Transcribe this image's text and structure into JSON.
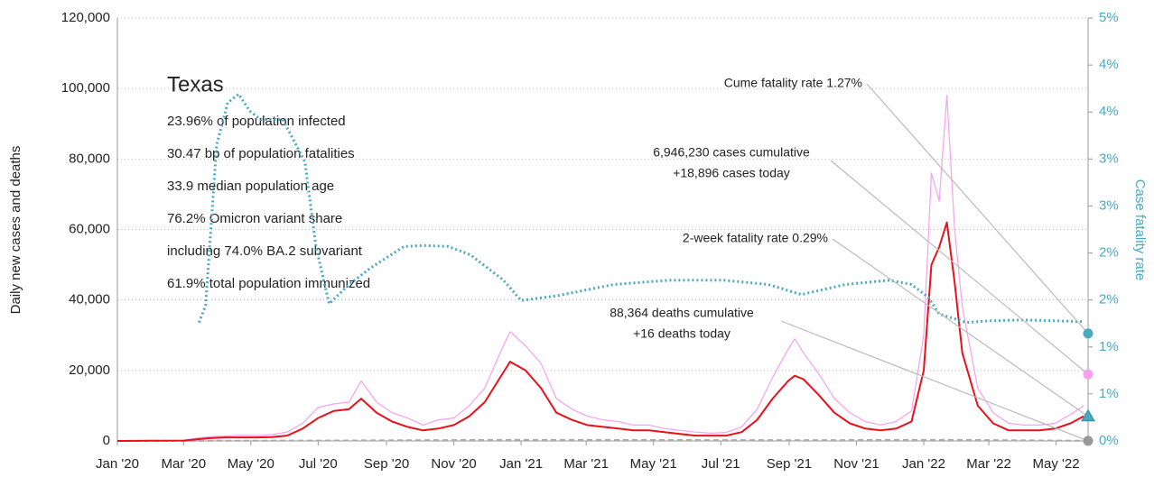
{
  "chart_data": {
    "type": "line",
    "y_label": "Daily new cases and deaths",
    "y2_label": "Case fatality rate",
    "info": {
      "title": "Texas",
      "lines": [
        "23.96% of population infected",
        "30.47 bp of population fatalities",
        "33.9 median population age",
        "76.2% Omicron variant share",
        "including 74.0% BA.2 subvariant",
        "61.9% total population immunized"
      ]
    },
    "xlim": [
      0,
      880
    ],
    "xticks": [
      {
        "value": 0,
        "label": "Jan '20"
      },
      {
        "value": 60,
        "label": "Mar '20"
      },
      {
        "value": 121,
        "label": "May '20"
      },
      {
        "value": 182,
        "label": "Jul '20"
      },
      {
        "value": 244,
        "label": "Sep '20"
      },
      {
        "value": 305,
        "label": "Nov '20"
      },
      {
        "value": 366,
        "label": "Jan '21"
      },
      {
        "value": 425,
        "label": "Mar '21"
      },
      {
        "value": 486,
        "label": "May '21"
      },
      {
        "value": 547,
        "label": "Jul '21"
      },
      {
        "value": 609,
        "label": "Sep '21"
      },
      {
        "value": 670,
        "label": "Nov '21"
      },
      {
        "value": 731,
        "label": "Jan '22"
      },
      {
        "value": 790,
        "label": "Mar '22"
      },
      {
        "value": 851,
        "label": "May '22"
      }
    ],
    "ylim": [
      0,
      120000
    ],
    "yticks": [
      0,
      {
        "value": 20000,
        "label": "20,000"
      },
      {
        "value": 40000,
        "label": "40,000"
      },
      {
        "value": 60000,
        "label": "60,000"
      },
      {
        "value": 80000,
        "label": "80,000"
      },
      {
        "value": 100000,
        "label": "100,000"
      },
      {
        "value": 120000,
        "label": "120,000"
      }
    ],
    "y2lim": [
      0,
      5
    ],
    "y2ticks": [
      {
        "value": 0,
        "label": "0%"
      },
      {
        "value": 0.556,
        "label": "1%"
      },
      {
        "value": 1.111,
        "label": "1%"
      },
      {
        "value": 1.667,
        "label": "2%"
      },
      {
        "value": 2.222,
        "label": "2%"
      },
      {
        "value": 2.778,
        "label": "3%"
      },
      {
        "value": 3.333,
        "label": "3%"
      },
      {
        "value": 3.889,
        "label": "4%"
      },
      {
        "value": 4.444,
        "label": "4%"
      },
      {
        "value": 5,
        "label": "5%"
      }
    ],
    "grid": true,
    "series": [
      {
        "color": "#f7a0f0",
        "style": "solid",
        "width": 1.2,
        "x": [
          0,
          30,
          60,
          74,
          84,
          98,
          112,
          126,
          140,
          154,
          168,
          182,
          196,
          210,
          221,
          235,
          249,
          263,
          277,
          291,
          305,
          319,
          333,
          347,
          356,
          370,
          384,
          398,
          412,
          426,
          440,
          454,
          468,
          482,
          496,
          510,
          524,
          538,
          552,
          566,
          580,
          594,
          608,
          614,
          622,
          636,
          650,
          664,
          678,
          692,
          706,
          720,
          731,
          738,
          745,
          752,
          759,
          766,
          780,
          794,
          808,
          822,
          836,
          850,
          864,
          876
        ],
        "values": [
          0,
          80,
          150,
          900,
          1200,
          1400,
          1600,
          1500,
          1800,
          2500,
          5000,
          9500,
          10500,
          11000,
          17000,
          11000,
          8000,
          6500,
          4500,
          6000,
          6500,
          10000,
          15000,
          25000,
          31000,
          27000,
          22000,
          12000,
          9000,
          7000,
          6000,
          5500,
          4500,
          4500,
          3500,
          3000,
          2500,
          2200,
          2400,
          4000,
          9000,
          18000,
          26000,
          29000,
          25000,
          19000,
          12000,
          8000,
          5500,
          4500,
          5500,
          8500,
          30000,
          76000,
          68000,
          98000,
          60000,
          38000,
          15000,
          8000,
          5000,
          4500,
          4500,
          5000,
          7500,
          10000
        ]
      },
      {
        "color": "#aaaaaa",
        "style": "dash",
        "width": 2,
        "x": [
          0,
          182,
          366,
          614,
          750,
          876
        ],
        "values": [
          0,
          100,
          300,
          200,
          300,
          50
        ]
      },
      {
        "color": "#e8101a",
        "style": "solid",
        "width": 2,
        "x": [
          0,
          30,
          60,
          74,
          84,
          98,
          112,
          126,
          140,
          154,
          168,
          182,
          196,
          210,
          221,
          235,
          249,
          263,
          277,
          291,
          305,
          319,
          333,
          347,
          356,
          370,
          384,
          398,
          412,
          426,
          440,
          454,
          468,
          482,
          496,
          510,
          524,
          538,
          552,
          566,
          580,
          594,
          608,
          614,
          622,
          636,
          650,
          664,
          678,
          692,
          706,
          720,
          731,
          738,
          745,
          752,
          759,
          766,
          780,
          794,
          808,
          822,
          836,
          850,
          864,
          876
        ],
        "values": [
          0,
          50,
          100,
          500,
          800,
          1000,
          1000,
          1000,
          1100,
          1500,
          3500,
          6500,
          8500,
          9000,
          12000,
          8000,
          5500,
          4000,
          3000,
          3500,
          4500,
          7000,
          11000,
          18000,
          22500,
          20000,
          15000,
          8000,
          6000,
          4500,
          4000,
          3500,
          3000,
          3000,
          2500,
          2000,
          1500,
          1500,
          1500,
          2500,
          6000,
          12000,
          17000,
          18500,
          17500,
          13000,
          8000,
          5000,
          3500,
          3000,
          3500,
          5500,
          20000,
          50000,
          55000,
          62000,
          45000,
          25000,
          10000,
          5000,
          3000,
          3000,
          3000,
          3500,
          5000,
          7000
        ]
      },
      {
        "color": "#4aa9c0",
        "style": "dot",
        "width": 3,
        "axis": "y2",
        "x": [
          74,
          80,
          90,
          100,
          110,
          120,
          130,
          150,
          170,
          180,
          192,
          210,
          230,
          260,
          278,
          300,
          320,
          350,
          366,
          400,
          450,
          500,
          550,
          590,
          620,
          660,
          700,
          720,
          735,
          745,
          770,
          790,
          820,
          850,
          876
        ],
        "values": [
          1.4,
          1.6,
          3.5,
          4.0,
          4.1,
          3.9,
          3.8,
          3.8,
          3.3,
          2.3,
          1.62,
          1.85,
          2.05,
          2.3,
          2.31,
          2.3,
          2.2,
          1.9,
          1.66,
          1.72,
          1.85,
          1.9,
          1.9,
          1.85,
          1.73,
          1.85,
          1.9,
          1.85,
          1.7,
          1.5,
          1.4,
          1.42,
          1.43,
          1.42,
          1.41
        ]
      }
    ],
    "annotations": [
      {
        "lines": [
          "Cume fatality rate 1.27%"
        ],
        "value": 1.27,
        "axis": "y2",
        "marker": "circle",
        "color": "#4aa9c0"
      },
      {
        "lines": [
          "6,946,230 cases cumulative",
          "+18,896 cases today"
        ],
        "value": 18896,
        "axis": "y",
        "marker": "circle",
        "color": "#f7a0f0"
      },
      {
        "lines": [
          "2-week fatality rate 0.29%"
        ],
        "value": 0.29,
        "axis": "y2",
        "marker": "triangle",
        "color": "#4aa9c0"
      },
      {
        "lines": [
          "88,364 deaths cumulative",
          "+16 deaths today"
        ],
        "value": 16,
        "axis": "y",
        "marker": "circle",
        "color": "#999999"
      }
    ]
  }
}
